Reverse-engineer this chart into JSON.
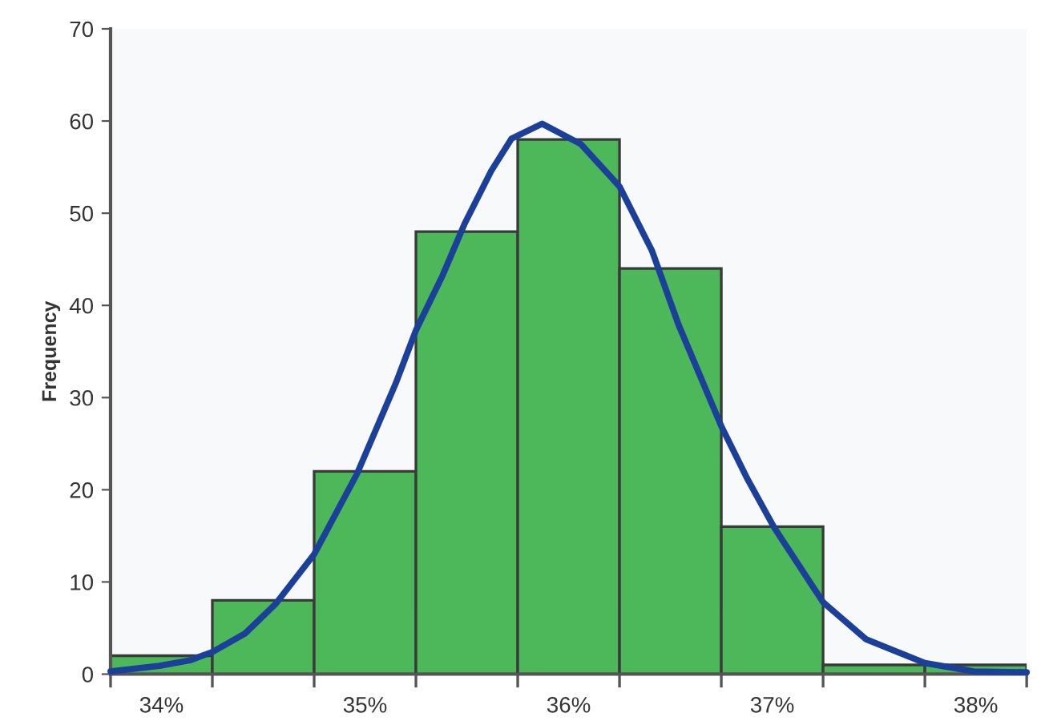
{
  "chart_data": {
    "type": "histogram",
    "ylabel": "Frequency",
    "bins": [
      33.75,
      34.25,
      34.75,
      35.25,
      35.75,
      36.25,
      36.75,
      37.25,
      37.75,
      38.25
    ],
    "values": [
      2,
      8,
      22,
      48,
      58,
      44,
      16,
      1,
      1
    ],
    "color": "#4cb85a",
    "series": [
      {
        "type": "line",
        "color": "#1c3f99",
        "x": [
          33.75,
          33.99,
          34.14,
          34.25,
          34.41,
          34.56,
          34.75,
          34.96,
          35.15,
          35.25,
          35.38,
          35.49,
          35.62,
          35.72,
          35.87,
          36.06,
          36.25,
          36.41,
          36.54,
          36.75,
          36.88,
          37.01,
          37.25,
          37.46,
          37.75,
          37.99,
          38.25
        ],
        "values": [
          0.3,
          0.9,
          1.5,
          2.4,
          4.4,
          7.6,
          13,
          21.7,
          31.5,
          37.3,
          43.2,
          48.9,
          54.6,
          58.1,
          59.7,
          57.5,
          52.9,
          45.9,
          37.9,
          26.9,
          21.1,
          15.9,
          7.8,
          3.8,
          1.2,
          0.3,
          0.2
        ]
      }
    ],
    "xlim": [
      33.75,
      38.25
    ],
    "xticks": [
      {
        "value": 33.75,
        "label": null
      },
      {
        "value": 34,
        "label": "34%"
      },
      {
        "value": 34.25,
        "label": null
      },
      {
        "value": 34.75,
        "label": null
      },
      {
        "value": 35,
        "label": "35%"
      },
      {
        "value": 35.25,
        "label": null
      },
      {
        "value": 35.75,
        "label": null
      },
      {
        "value": 36,
        "label": "36%"
      },
      {
        "value": 36.25,
        "label": null
      },
      {
        "value": 36.75,
        "label": null
      },
      {
        "value": 37,
        "label": "37%"
      },
      {
        "value": 37.25,
        "label": null
      },
      {
        "value": 37.75,
        "label": null
      },
      {
        "value": 38,
        "label": "38%"
      },
      {
        "value": 38.25,
        "label": null
      }
    ],
    "ylim": [
      0,
      70
    ],
    "yticks": [
      0,
      10,
      20,
      30,
      40,
      50,
      60,
      70
    ],
    "grid": false
  }
}
